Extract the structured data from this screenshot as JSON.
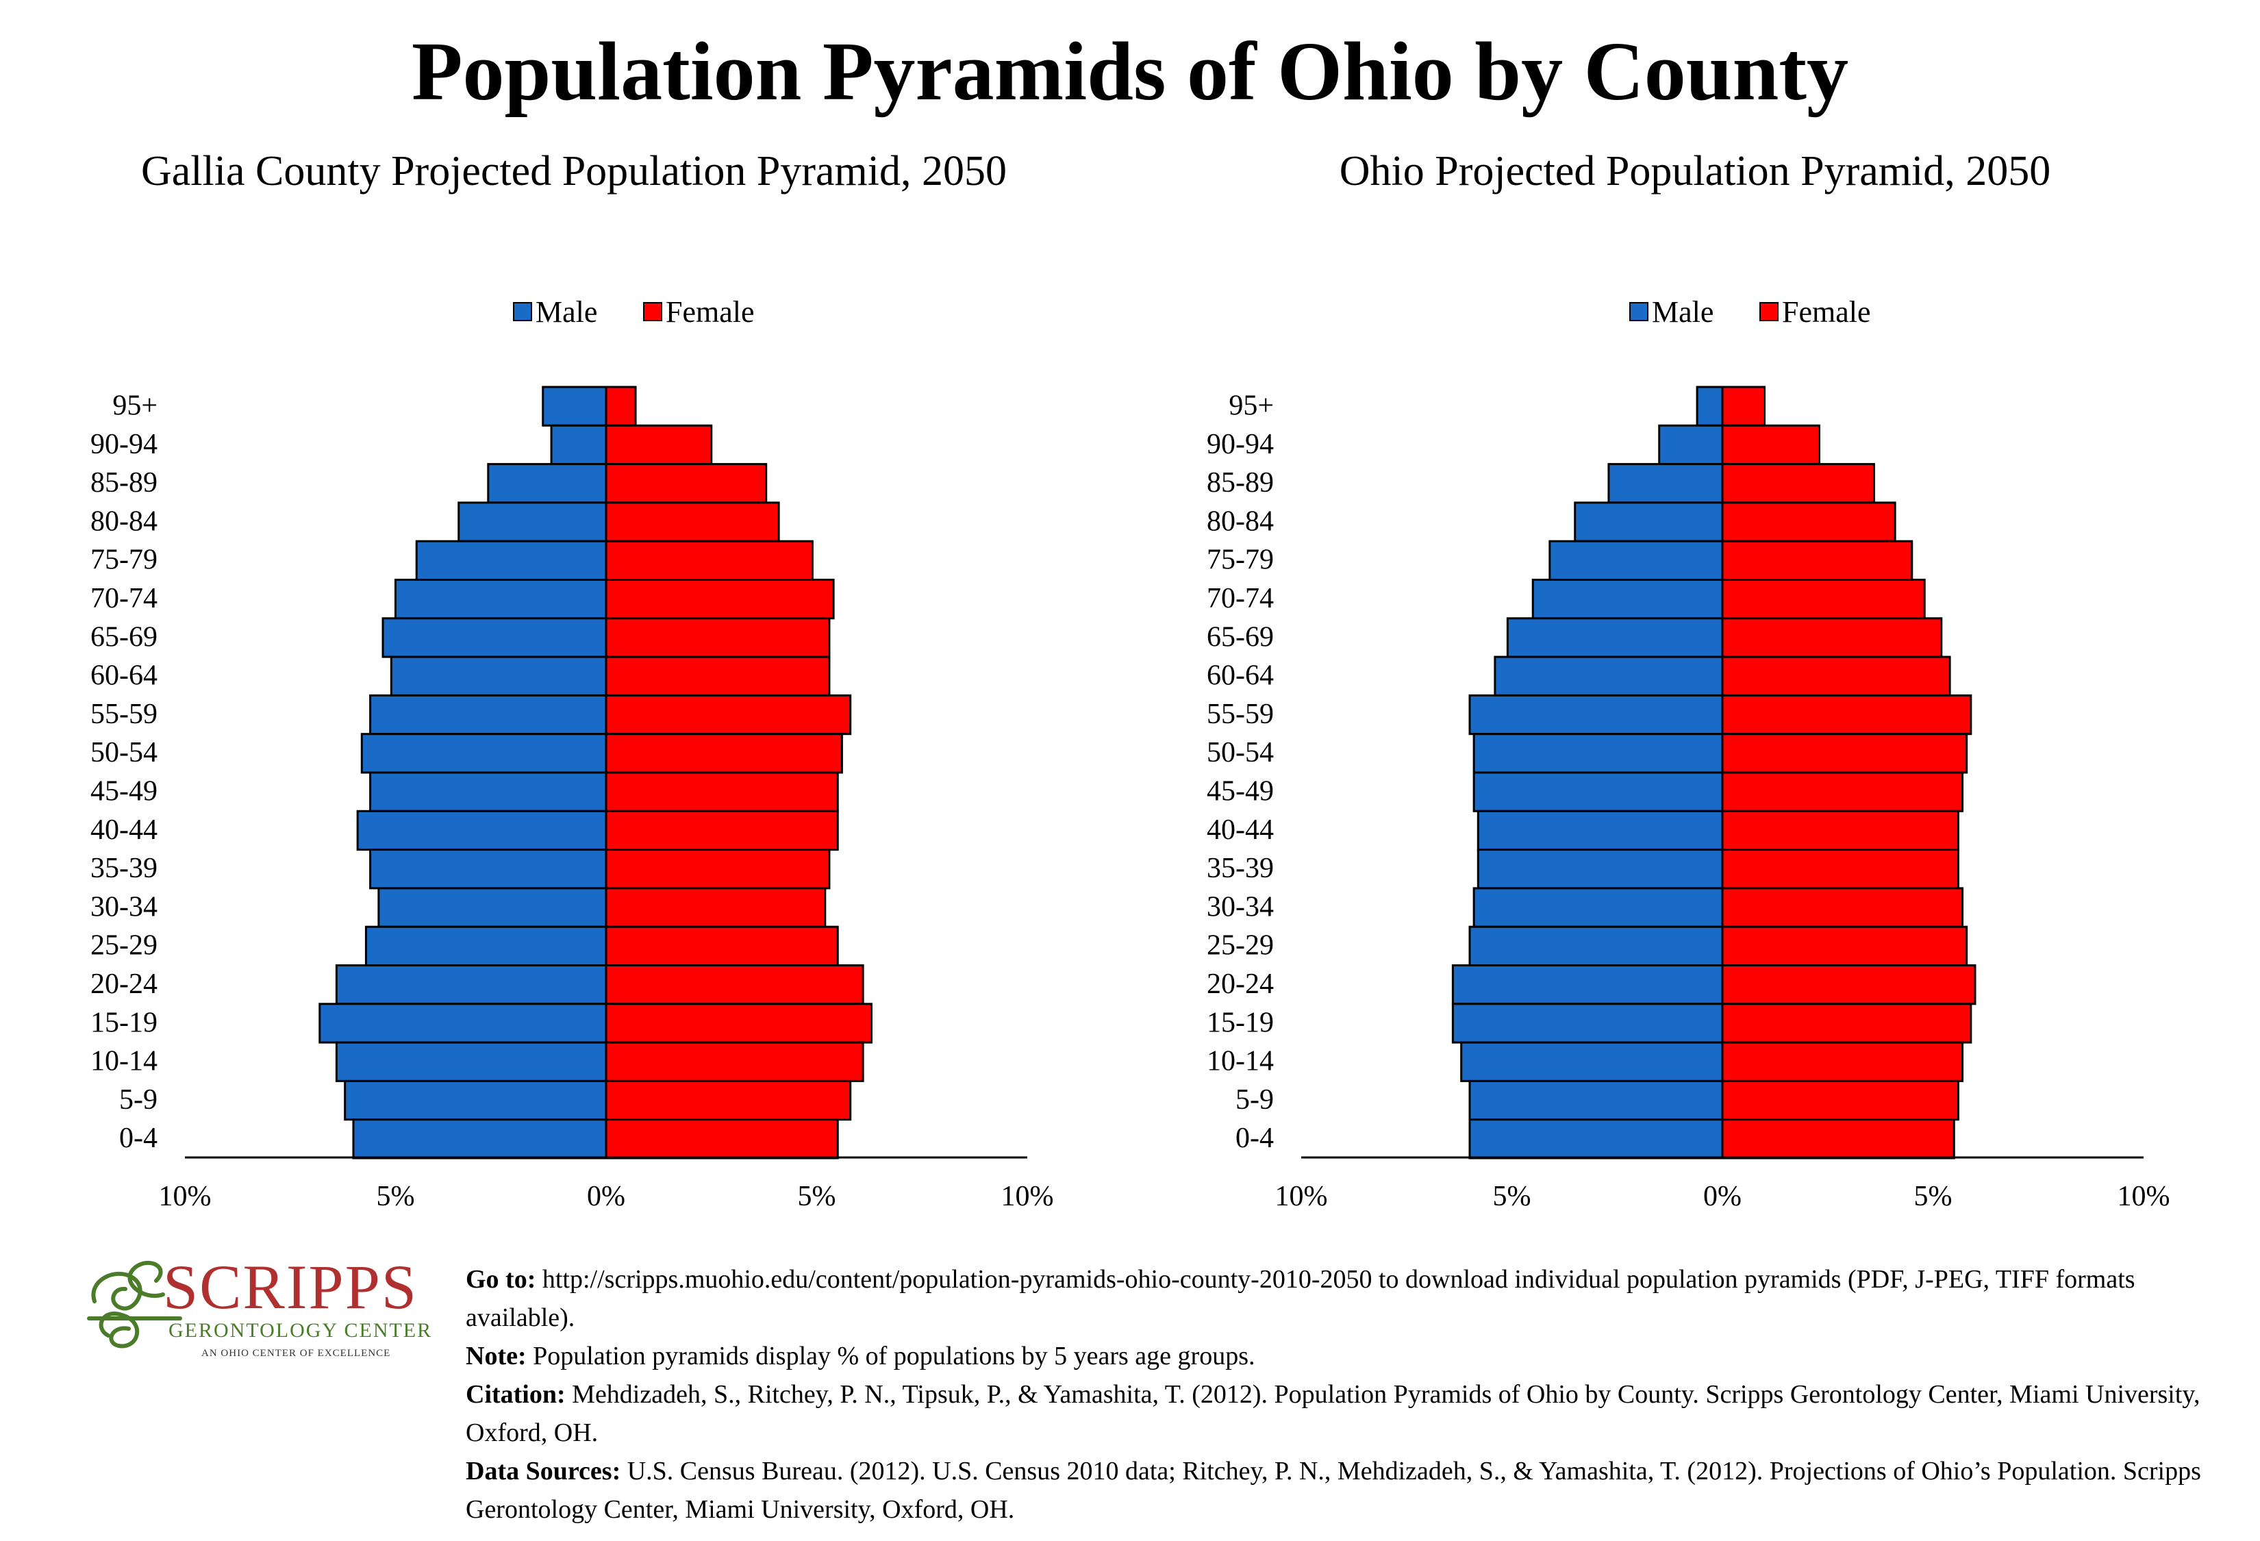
{
  "title": "Population Pyramids of Ohio by County",
  "colors": {
    "male": "#1a6ac7",
    "female": "#ff0000",
    "logo_red": "#b03030",
    "logo_green": "#4a7c2a"
  },
  "chart_data": [
    {
      "type": "bar",
      "subtype": "population-pyramid",
      "title": "Gallia County Projected Population Pyramid, 2050",
      "legend_position": "top-center",
      "categories": [
        "95+",
        "90-94",
        "85-89",
        "80-84",
        "75-79",
        "70-74",
        "65-69",
        "60-64",
        "55-59",
        "50-54",
        "45-49",
        "40-44",
        "35-39",
        "30-34",
        "25-29",
        "20-24",
        "15-19",
        "10-14",
        "5-9",
        "0-4"
      ],
      "series": [
        {
          "name": "Male",
          "values": [
            1.5,
            1.3,
            2.8,
            3.5,
            4.5,
            5.0,
            5.3,
            5.1,
            5.6,
            5.8,
            5.6,
            5.9,
            5.6,
            5.4,
            5.7,
            6.4,
            6.8,
            6.4,
            6.2,
            6.0
          ]
        },
        {
          "name": "Female",
          "values": [
            0.7,
            2.5,
            3.8,
            4.1,
            4.9,
            5.4,
            5.3,
            5.3,
            5.8,
            5.6,
            5.5,
            5.5,
            5.3,
            5.2,
            5.5,
            6.1,
            6.3,
            6.1,
            5.8,
            5.5
          ]
        }
      ],
      "x_ticks": [
        "10%",
        "5%",
        "0%",
        "5%",
        "10%"
      ],
      "xlim": [
        -10,
        10
      ],
      "grid": false
    },
    {
      "type": "bar",
      "subtype": "population-pyramid",
      "title": "Ohio Projected Population Pyramid, 2050",
      "legend_position": "top-center",
      "categories": [
        "95+",
        "90-94",
        "85-89",
        "80-84",
        "75-79",
        "70-74",
        "65-69",
        "60-64",
        "55-59",
        "50-54",
        "45-49",
        "40-44",
        "35-39",
        "30-34",
        "25-29",
        "20-24",
        "15-19",
        "10-14",
        "5-9",
        "0-4"
      ],
      "series": [
        {
          "name": "Male",
          "values": [
            0.6,
            1.5,
            2.7,
            3.5,
            4.1,
            4.5,
            5.1,
            5.4,
            6.0,
            5.9,
            5.9,
            5.8,
            5.8,
            5.9,
            6.0,
            6.4,
            6.4,
            6.2,
            6.0,
            6.0
          ]
        },
        {
          "name": "Female",
          "values": [
            1.0,
            2.3,
            3.6,
            4.1,
            4.5,
            4.8,
            5.2,
            5.4,
            5.9,
            5.8,
            5.7,
            5.6,
            5.6,
            5.7,
            5.8,
            6.0,
            5.9,
            5.7,
            5.6,
            5.5
          ]
        }
      ],
      "x_ticks": [
        "10%",
        "5%",
        "0%",
        "5%",
        "10%"
      ],
      "xlim": [
        -10,
        10
      ],
      "grid": false
    }
  ],
  "logo": {
    "name": "SCRIPPS",
    "subtitle": "GERONTOLOGY CENTER",
    "tagline": "AN OHIO CENTER OF EXCELLENCE"
  },
  "footer": {
    "goto_label": "Go to:",
    "goto_text": " http://scripps.muohio.edu/content/population-pyramids-ohio-county-2010-2050 to download individual population pyramids (PDF, J-PEG, TIFF formats available).",
    "note_label": "Note:",
    "note_text": " Population pyramids display % of populations by 5 years age groups.",
    "citation_label": "Citation:",
    "citation_text": " Mehdizadeh, S., Ritchey, P. N., Tipsuk, P., & Yamashita, T. (2012). Population Pyramids of Ohio by County. Scripps Gerontology Center, Miami University, Oxford, OH.",
    "sources_label": "Data Sources:",
    "sources_text": " U.S. Census Bureau. (2012). U.S. Census 2010 data; Ritchey, P. N., Mehdizadeh, S., & Yamashita, T. (2012). Projections of Ohio’s Population. Scripps Gerontology Center, Miami University, Oxford, OH."
  }
}
